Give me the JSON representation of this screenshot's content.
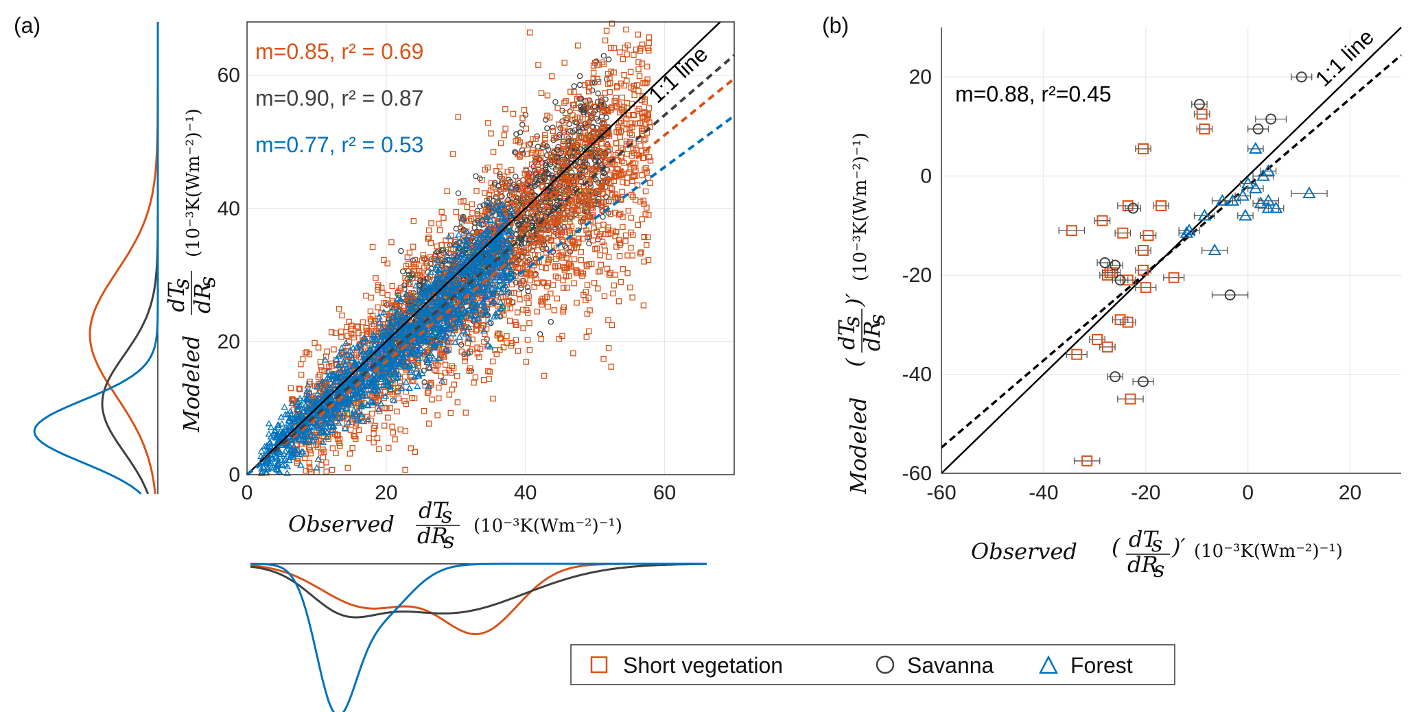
{
  "colors": {
    "short_vegetation": "#d95319",
    "savanna": "#404040",
    "forest": "#0072bd",
    "one_to_one": "#000000",
    "grid": "#e6e6e6"
  },
  "legend": {
    "items": [
      {
        "label": "Short vegetation",
        "marker": "square",
        "color": "#d95319"
      },
      {
        "label": "Savanna",
        "marker": "circle",
        "color": "#404040"
      },
      {
        "label": "Forest",
        "marker": "triangle",
        "color": "#0072bd"
      }
    ]
  },
  "chart_data": [
    {
      "panel": "(a)",
      "type": "scatter",
      "xlim": [
        0,
        70
      ],
      "ylim": [
        0,
        68
      ],
      "xticks": [
        0,
        20,
        40,
        60
      ],
      "yticks": [
        0,
        20,
        40,
        60
      ],
      "xlabel_var": "Observed",
      "ylabel_var": "Modeled",
      "frac_num": "dT",
      "frac_num_sub": "s",
      "frac_den": "dR",
      "frac_den_sub": "s",
      "units": "(10⁻³K(Wm⁻²)⁻¹)",
      "one_to_one_label": "1:1 line",
      "fits": [
        {
          "series": "short_vegetation",
          "label": "m=0.85, r² = 0.69",
          "m": 0.85
        },
        {
          "series": "savanna",
          "label": "m=0.90, r² = 0.87",
          "m": 0.9
        },
        {
          "series": "forest",
          "label": "m=0.77, r² = 0.53",
          "m": 0.77
        }
      ],
      "clouds": [
        {
          "series": "savanna",
          "n": 1400,
          "x_range": [
            20,
            52
          ],
          "slope": 0.98,
          "spread": 4.0
        },
        {
          "series": "short_vegetation",
          "n": 2200,
          "x_range": [
            6,
            58
          ],
          "slope": 0.9,
          "spread": 7.0
        },
        {
          "series": "forest",
          "n": 1700,
          "x_range": [
            2,
            38
          ],
          "slope": 0.9,
          "spread": 3.5
        }
      ],
      "marginals": {
        "x_density": [
          {
            "series": "short_vegetation",
            "peak": 35,
            "width": 6,
            "amp": 0.55,
            "peak2": 18,
            "width2": 7,
            "amp2": 0.35
          },
          {
            "series": "savanna",
            "peak": 30,
            "width": 12,
            "amp": 0.4,
            "peak2": 14,
            "width2": 5,
            "amp2": 0.25
          },
          {
            "series": "forest",
            "peak": 13,
            "width": 3,
            "amp": 1.0,
            "peak2": 19,
            "width2": 5,
            "amp2": 0.45
          }
        ],
        "y_density": [
          {
            "series": "short_vegetation",
            "peak": 23,
            "width": 9,
            "amp": 0.55
          },
          {
            "series": "savanna",
            "peak": 13,
            "width": 7,
            "amp": 0.45
          },
          {
            "series": "forest",
            "peak": 9,
            "width": 4.5,
            "amp": 1.0
          }
        ]
      }
    },
    {
      "panel": "(b)",
      "type": "scatter",
      "xlim": [
        -60,
        30
      ],
      "ylim": [
        -60,
        30
      ],
      "xticks": [
        -60,
        -40,
        -20,
        0,
        20
      ],
      "yticks": [
        -60,
        -40,
        -20,
        0,
        20
      ],
      "xlabel_var": "Observed",
      "ylabel_var": "Modeled",
      "frac_num": "dT",
      "frac_num_sub": "s",
      "frac_den": "dR",
      "frac_den_sub": "s",
      "units": "(10⁻³K(Wm⁻²)⁻¹)",
      "one_to_one_label": "1:1 line",
      "fit_label": "m=0.88, r²=0.45",
      "fit_m": 0.88,
      "fit_b": -0.2,
      "points": {
        "short_vegetation": [
          [
            -20.5,
            5.5,
            1.5
          ],
          [
            -9,
            12.5,
            1.5
          ],
          [
            -8.5,
            9.5,
            1.5
          ],
          [
            -34.5,
            -11,
            2.5
          ],
          [
            -23.5,
            -6,
            2
          ],
          [
            -17,
            -6,
            1.5
          ],
          [
            -24.5,
            -11.5,
            1.5
          ],
          [
            -19.5,
            -12,
            1.5
          ],
          [
            -28.5,
            -9,
            1.5
          ],
          [
            -20.5,
            -15,
            1.5
          ],
          [
            -27.5,
            -20,
            1.5
          ],
          [
            -26.5,
            -19.5,
            1.5
          ],
          [
            -23.5,
            -21,
            1.5
          ],
          [
            -20.5,
            -19,
            1.5
          ],
          [
            -14.5,
            -20.5,
            2
          ],
          [
            -20,
            -22.5,
            2
          ],
          [
            -25,
            -29,
            1.5
          ],
          [
            -23.5,
            -29.5,
            1.5
          ],
          [
            -29.5,
            -33,
            1.5
          ],
          [
            -27.5,
            -34.5,
            1.5
          ],
          [
            -33.5,
            -36,
            2
          ],
          [
            -23,
            -45,
            2.5
          ],
          [
            -31.5,
            -57.5,
            2.5
          ],
          [
            -27,
            -19.5,
            1.5
          ]
        ],
        "savanna": [
          [
            10.5,
            20,
            2
          ],
          [
            -9.5,
            14.5,
            1.5
          ],
          [
            4.5,
            11.5,
            3
          ],
          [
            2,
            9.5,
            2
          ],
          [
            -22.5,
            -6.5,
            1.5
          ],
          [
            -28,
            -17.5,
            1.5
          ],
          [
            -26,
            -18,
            1.5
          ],
          [
            -3.5,
            -24,
            3.5
          ],
          [
            -26,
            -40.5,
            1.5
          ],
          [
            -20.5,
            -41.5,
            2
          ],
          [
            -25,
            -21,
            1.5
          ]
        ],
        "forest": [
          [
            1.5,
            5.5,
            1.5
          ],
          [
            12,
            -3.5,
            3.5
          ],
          [
            3,
            0,
            2
          ],
          [
            4,
            1,
            1.5
          ],
          [
            -11.5,
            -11,
            2
          ],
          [
            -8.5,
            -8,
            2
          ],
          [
            -5,
            -5,
            2
          ],
          [
            -3,
            -5,
            1.5
          ],
          [
            -1,
            -4,
            1.5
          ],
          [
            0,
            -1.5,
            1.5
          ],
          [
            1.5,
            -2.5,
            1.5
          ],
          [
            -0.5,
            -8,
            1.5
          ],
          [
            2.5,
            -5.5,
            1.5
          ],
          [
            4,
            -6.5,
            2
          ],
          [
            5.5,
            -6.5,
            1.5
          ],
          [
            -6.5,
            -15,
            2.5
          ],
          [
            -12,
            -11.5,
            1.5
          ],
          [
            4,
            -5,
            2
          ]
        ]
      }
    }
  ]
}
